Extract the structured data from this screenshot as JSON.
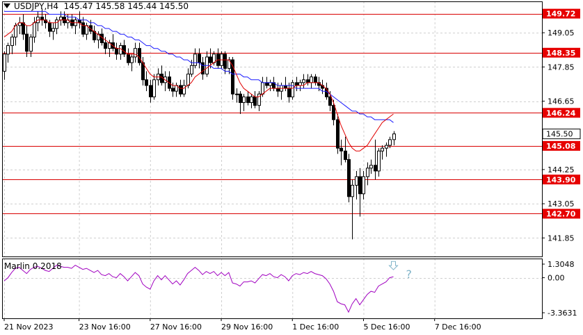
{
  "header": {
    "symbol": "USDJPY,H4",
    "ohlc": "145.47 145.58 145.44 145.50"
  },
  "indicator": {
    "label": "Marlin 0.2018",
    "levels": [
      "1.3048",
      "0.00",
      "-3.3631"
    ],
    "annotation_question": "?"
  },
  "colors": {
    "level_line": "#d90000",
    "level_badge": "#e60000",
    "ma_fast": "#e00000",
    "ma_slow": "#1a1aff",
    "oscillator": "#a000c0",
    "arrow": "#7fb3c8",
    "candle": "#000000"
  },
  "chart_data": {
    "type": "candlestick",
    "symbol": "USDJPY",
    "timeframe": "H4",
    "ylim": [
      141.2,
      150.15
    ],
    "price_ticks": [
      "149.05",
      "147.85",
      "146.65",
      "144.25",
      "143.05",
      "141.85"
    ],
    "current_price": "145.50",
    "horizontal_levels": [
      "149.72",
      "148.35",
      "146.24",
      "145.08",
      "143.90",
      "142.70"
    ],
    "x_labels": [
      "21 Nov 2023",
      "23 Nov 16:00",
      "27 Nov 16:00",
      "29 Nov 16:00",
      "1 Dec 16:00",
      "5 Dec 16:00",
      "7 Dec 16:00"
    ],
    "x_label_bar_index": [
      0,
      20,
      39,
      58,
      77,
      96,
      115
    ],
    "candles": [
      [
        147.7,
        148.4,
        147.4,
        148.3
      ],
      [
        148.3,
        148.7,
        148.0,
        148.6
      ],
      [
        148.6,
        149.0,
        148.3,
        148.9
      ],
      [
        148.9,
        149.4,
        148.6,
        149.3
      ],
      [
        149.3,
        149.6,
        149.0,
        149.4
      ],
      [
        149.4,
        149.7,
        148.8,
        149.0
      ],
      [
        149.0,
        149.3,
        148.2,
        148.4
      ],
      [
        148.4,
        149.0,
        148.2,
        148.9
      ],
      [
        148.9,
        149.6,
        148.7,
        149.4
      ],
      [
        149.4,
        149.8,
        149.1,
        149.6
      ],
      [
        149.6,
        149.9,
        149.3,
        149.5
      ],
      [
        149.5,
        149.7,
        149.2,
        149.4
      ],
      [
        149.4,
        149.5,
        148.9,
        149.1
      ],
      [
        149.1,
        149.4,
        148.8,
        149.2
      ],
      [
        149.2,
        149.6,
        149.0,
        149.5
      ],
      [
        149.5,
        149.8,
        149.3,
        149.6
      ],
      [
        149.6,
        149.8,
        149.3,
        149.4
      ],
      [
        149.4,
        149.7,
        149.2,
        149.5
      ],
      [
        149.5,
        149.7,
        149.2,
        149.3
      ],
      [
        149.3,
        149.6,
        149.0,
        149.5
      ],
      [
        149.5,
        149.8,
        149.2,
        149.4
      ],
      [
        149.4,
        149.6,
        148.9,
        149.0
      ],
      [
        149.0,
        149.4,
        148.8,
        149.3
      ],
      [
        149.3,
        149.5,
        149.0,
        149.1
      ],
      [
        149.1,
        149.3,
        148.7,
        148.8
      ],
      [
        148.8,
        149.1,
        148.5,
        149.0
      ],
      [
        149.0,
        149.2,
        148.6,
        148.7
      ],
      [
        148.7,
        148.9,
        148.3,
        148.5
      ],
      [
        148.5,
        148.8,
        148.2,
        148.7
      ],
      [
        148.7,
        149.0,
        148.4,
        148.5
      ],
      [
        148.5,
        148.7,
        148.1,
        148.3
      ],
      [
        148.3,
        148.7,
        148.1,
        148.6
      ],
      [
        148.6,
        148.8,
        148.2,
        148.3
      ],
      [
        148.3,
        148.5,
        147.9,
        148.0
      ],
      [
        148.0,
        148.3,
        147.7,
        148.2
      ],
      [
        148.2,
        148.7,
        148.0,
        148.5
      ],
      [
        148.5,
        148.7,
        147.9,
        148.0
      ],
      [
        148.0,
        148.2,
        147.2,
        147.4
      ],
      [
        147.4,
        147.7,
        147.0,
        147.2
      ],
      [
        147.2,
        147.4,
        146.6,
        146.8
      ],
      [
        146.8,
        147.6,
        146.7,
        147.4
      ],
      [
        147.4,
        147.8,
        147.2,
        147.6
      ],
      [
        147.6,
        147.9,
        147.2,
        147.3
      ],
      [
        147.3,
        147.7,
        147.0,
        147.5
      ],
      [
        147.5,
        147.7,
        147.0,
        147.1
      ],
      [
        147.1,
        147.3,
        146.8,
        147.0
      ],
      [
        147.0,
        147.3,
        146.8,
        147.2
      ],
      [
        147.2,
        147.4,
        146.8,
        146.9
      ],
      [
        146.9,
        147.4,
        146.8,
        147.2
      ],
      [
        147.2,
        147.8,
        147.1,
        147.6
      ],
      [
        147.6,
        148.1,
        147.5,
        147.9
      ],
      [
        147.9,
        148.5,
        147.8,
        148.3
      ],
      [
        148.3,
        148.5,
        147.8,
        148.0
      ],
      [
        148.0,
        148.2,
        147.4,
        147.6
      ],
      [
        147.6,
        148.4,
        147.5,
        148.2
      ],
      [
        148.2,
        148.5,
        147.8,
        148.0
      ],
      [
        148.0,
        148.4,
        147.9,
        148.3
      ],
      [
        148.3,
        148.5,
        147.8,
        147.9
      ],
      [
        147.9,
        148.4,
        147.8,
        148.3
      ],
      [
        148.3,
        148.4,
        147.6,
        147.8
      ],
      [
        147.8,
        148.2,
        147.6,
        148.1
      ],
      [
        148.1,
        148.2,
        146.7,
        146.9
      ],
      [
        146.9,
        147.1,
        146.6,
        146.9
      ],
      [
        146.9,
        147.0,
        146.2,
        146.6
      ],
      [
        146.6,
        146.9,
        146.3,
        146.8
      ],
      [
        146.8,
        147.0,
        146.5,
        146.6
      ],
      [
        146.6,
        146.9,
        146.4,
        146.8
      ],
      [
        146.8,
        147.0,
        146.4,
        146.5
      ],
      [
        146.5,
        147.0,
        146.3,
        146.9
      ],
      [
        146.9,
        147.5,
        146.8,
        147.3
      ],
      [
        147.3,
        147.5,
        147.1,
        147.2
      ],
      [
        147.2,
        147.4,
        147.0,
        147.3
      ],
      [
        147.3,
        147.5,
        147.0,
        147.1
      ],
      [
        147.1,
        147.3,
        146.8,
        147.0
      ],
      [
        147.0,
        147.3,
        146.7,
        147.2
      ],
      [
        147.2,
        147.5,
        147.0,
        147.1
      ],
      [
        147.1,
        147.3,
        146.6,
        146.8
      ],
      [
        146.8,
        147.4,
        146.7,
        147.3
      ],
      [
        147.3,
        147.5,
        147.0,
        147.2
      ],
      [
        147.2,
        147.4,
        147.0,
        147.3
      ],
      [
        147.3,
        147.6,
        147.1,
        147.4
      ],
      [
        147.4,
        147.6,
        147.2,
        147.3
      ],
      [
        147.3,
        147.6,
        147.1,
        147.5
      ],
      [
        147.5,
        147.6,
        147.2,
        147.3
      ],
      [
        147.3,
        147.5,
        147.0,
        147.2
      ],
      [
        147.2,
        147.4,
        146.9,
        147.1
      ],
      [
        147.1,
        147.3,
        146.7,
        146.8
      ],
      [
        146.8,
        147.0,
        146.3,
        146.5
      ],
      [
        146.5,
        146.7,
        145.8,
        146.0
      ],
      [
        146.0,
        146.2,
        144.8,
        145.0
      ],
      [
        145.0,
        145.3,
        144.4,
        144.9
      ],
      [
        144.9,
        145.4,
        144.5,
        144.6
      ],
      [
        144.6,
        144.8,
        143.1,
        143.3
      ],
      [
        143.3,
        143.9,
        141.8,
        143.7
      ],
      [
        143.7,
        144.2,
        143.2,
        144.0
      ],
      [
        144.0,
        144.3,
        142.6,
        143.4
      ],
      [
        143.4,
        144.2,
        143.2,
        144.0
      ],
      [
        144.0,
        144.5,
        143.7,
        144.3
      ],
      [
        144.3,
        144.6,
        144.1,
        144.4
      ],
      [
        144.4,
        145.3,
        143.9,
        144.2
      ],
      [
        144.2,
        145.0,
        144.0,
        144.9
      ],
      [
        144.9,
        145.1,
        144.6,
        145.0
      ],
      [
        145.0,
        145.2,
        144.7,
        145.1
      ],
      [
        145.1,
        145.4,
        145.0,
        145.3
      ],
      [
        145.3,
        145.6,
        145.1,
        145.5
      ]
    ],
    "ma_fast": [
      148.9,
      149.0,
      149.1,
      149.3,
      149.4,
      149.4,
      149.3,
      149.3,
      149.4,
      149.5,
      149.5,
      149.5,
      149.4,
      149.4,
      149.4,
      149.5,
      149.5,
      149.5,
      149.4,
      149.4,
      149.4,
      149.3,
      149.3,
      149.2,
      149.1,
      149.0,
      148.9,
      148.8,
      148.7,
      148.6,
      148.5,
      148.5,
      148.4,
      148.3,
      148.3,
      148.3,
      148.2,
      148.0,
      147.8,
      147.6,
      147.5,
      147.5,
      147.5,
      147.4,
      147.3,
      147.2,
      147.2,
      147.1,
      147.1,
      147.2,
      147.3,
      147.5,
      147.6,
      147.7,
      147.8,
      147.9,
      148.0,
      148.1,
      148.1,
      148.1,
      148.1,
      147.9,
      147.6,
      147.3,
      147.1,
      147.0,
      146.9,
      146.8,
      146.8,
      146.9,
      147.0,
      147.1,
      147.1,
      147.1,
      147.1,
      147.1,
      147.1,
      147.1,
      147.2,
      147.2,
      147.2,
      147.3,
      147.3,
      147.3,
      147.3,
      147.2,
      147.1,
      146.9,
      146.6,
      146.2,
      145.8,
      145.5,
      145.2,
      145.0,
      144.9,
      144.9,
      145.0,
      145.1,
      145.3,
      145.5,
      145.7,
      145.9,
      146.0,
      146.1,
      146.2
    ],
    "ma_slow": [
      149.8,
      149.8,
      149.8,
      149.8,
      149.8,
      149.8,
      149.8,
      149.8,
      149.8,
      149.8,
      149.8,
      149.8,
      149.7,
      149.7,
      149.7,
      149.7,
      149.7,
      149.6,
      149.6,
      149.6,
      149.5,
      149.5,
      149.5,
      149.4,
      149.4,
      149.3,
      149.3,
      149.2,
      149.2,
      149.1,
      149.1,
      149.0,
      149.0,
      148.9,
      148.9,
      148.8,
      148.8,
      148.7,
      148.6,
      148.6,
      148.5,
      148.5,
      148.4,
      148.4,
      148.3,
      148.3,
      148.2,
      148.2,
      148.1,
      148.1,
      148.0,
      148.0,
      148.0,
      147.9,
      147.9,
      147.9,
      147.8,
      147.8,
      147.8,
      147.7,
      147.7,
      147.6,
      147.6,
      147.6,
      147.5,
      147.5,
      147.4,
      147.4,
      147.4,
      147.3,
      147.3,
      147.3,
      147.3,
      147.2,
      147.2,
      147.2,
      147.2,
      147.2,
      147.1,
      147.1,
      147.1,
      147.1,
      147.1,
      147.1,
      147.1,
      147.0,
      147.0,
      146.9,
      146.8,
      146.7,
      146.6,
      146.5,
      146.4,
      146.3,
      146.3,
      146.2,
      146.2,
      146.1,
      146.1,
      146.0,
      146.0,
      146.0,
      146.0,
      146.0,
      145.9
    ],
    "oscillator": {
      "name": "Marlin 0.2018",
      "ylim": [
        -3.3631,
        1.3048
      ],
      "values": [
        -0.3,
        0.0,
        0.5,
        0.9,
        1.0,
        0.7,
        0.4,
        0.8,
        1.0,
        1.1,
        0.9,
        0.7,
        0.6,
        0.9,
        1.2,
        1.1,
        1.0,
        1.0,
        0.9,
        1.2,
        1.0,
        0.8,
        0.9,
        0.7,
        0.5,
        0.7,
        0.3,
        0.2,
        0.4,
        0.1,
        0.0,
        0.4,
        0.1,
        -0.3,
        0.1,
        0.5,
        0.2,
        -0.6,
        -0.9,
        -1.1,
        -0.3,
        0.2,
        -0.2,
        0.2,
        -0.2,
        -0.6,
        -0.3,
        -0.7,
        -0.2,
        0.4,
        0.7,
        1.0,
        0.7,
        0.3,
        0.6,
        0.4,
        0.6,
        0.2,
        0.5,
        0.2,
        0.5,
        -0.5,
        -0.6,
        -0.8,
        -0.4,
        -0.4,
        -0.3,
        -0.5,
        -0.1,
        0.3,
        0.2,
        0.4,
        0.1,
        0.0,
        0.3,
        0.1,
        -0.3,
        0.2,
        0.4,
        0.3,
        0.5,
        0.4,
        0.6,
        0.4,
        0.3,
        0.2,
        -0.1,
        -0.6,
        -1.3,
        -2.3,
        -2.5,
        -2.6,
        -3.3,
        -2.5,
        -2.0,
        -2.6,
        -2.1,
        -1.6,
        -1.3,
        -1.4,
        -0.8,
        -0.6,
        -0.4,
        0.0,
        0.1
      ]
    }
  }
}
